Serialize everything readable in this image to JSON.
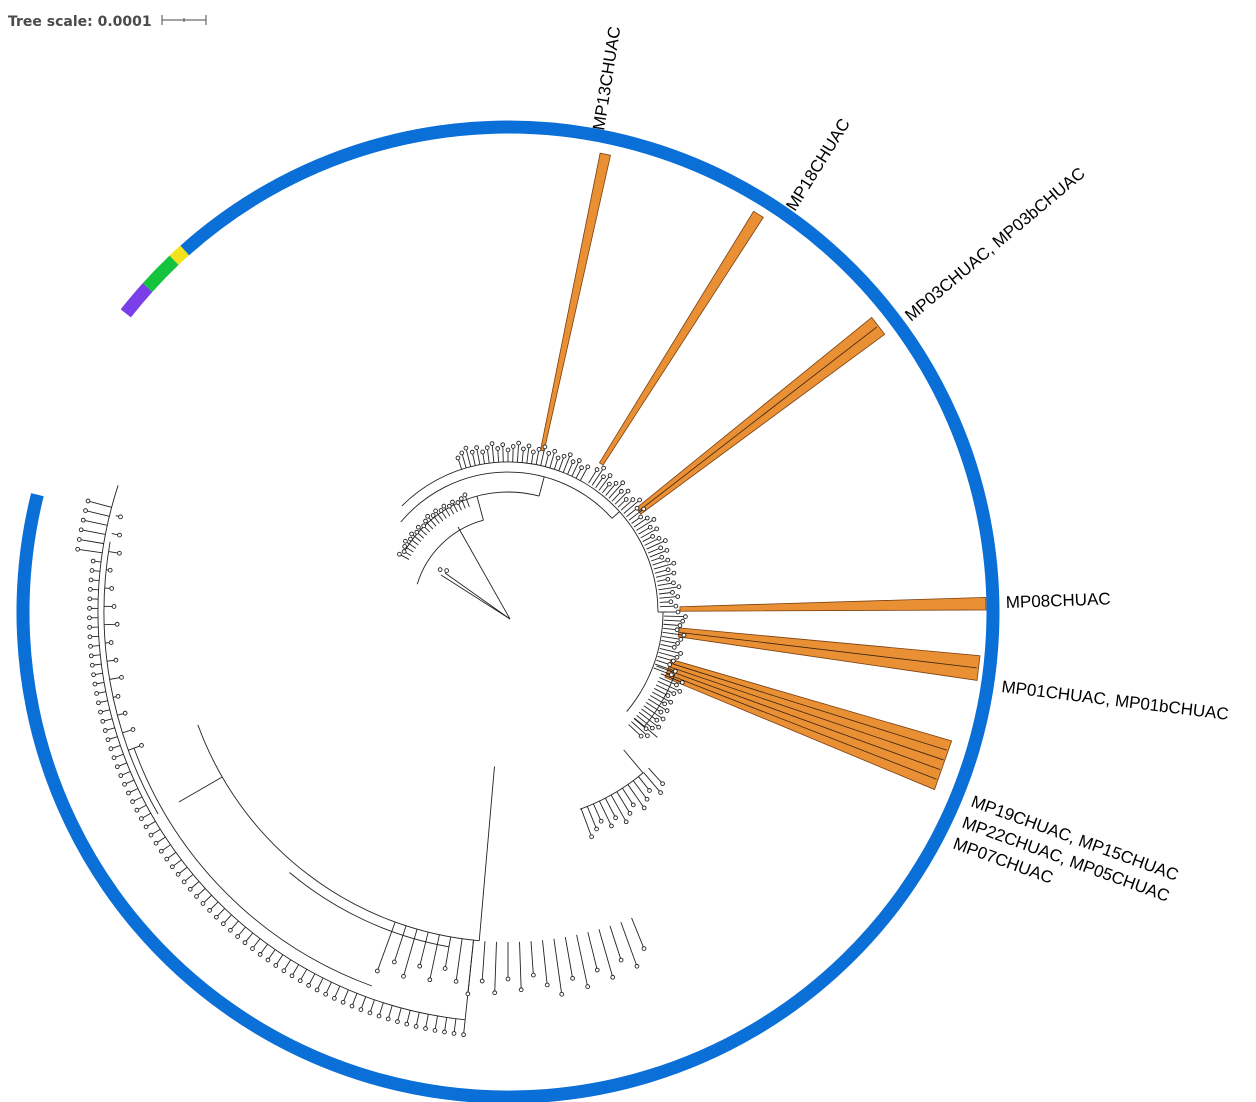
{
  "tree_scale": {
    "label": "Tree scale: 0.0001"
  },
  "colors": {
    "outer_ring": "#0a6fd6",
    "highlight": "#e98f34",
    "highlight_stroke": "#7a3f10",
    "strip_yellow": "#f2e21d",
    "strip_green": "#13c43c",
    "strip_purple": "#7a3fe8",
    "branch": "#222222"
  },
  "highlighted_clades": [
    {
      "label": "MP13CHUAC"
    },
    {
      "label": "MP18CHUAC"
    },
    {
      "label": "MP03CHUAC, MP03bCHUAC"
    },
    {
      "label": "MP08CHUAC"
    },
    {
      "label": "MP01CHUAC, MP01bCHUAC"
    },
    {
      "label_lines": [
        "MP19CHUAC, MP15CHUAC",
        "MP22CHUAC, MP05CHUAC",
        "MP07CHUAC"
      ]
    }
  ]
}
